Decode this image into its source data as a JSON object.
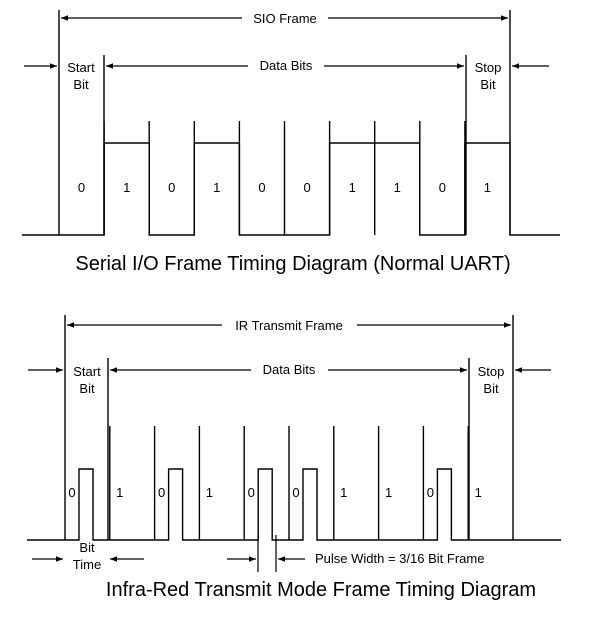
{
  "uart": {
    "frame_label": "SIO Frame",
    "start_label": [
      "Start",
      "Bit"
    ],
    "data_label": "Data Bits",
    "stop_label": [
      "Stop",
      "Bit"
    ],
    "bits": [
      "0",
      "1",
      "0",
      "1",
      "0",
      "0",
      "1",
      "1",
      "0",
      "1"
    ],
    "caption": "Serial I/O Frame Timing Diagram (Normal UART)"
  },
  "ir": {
    "frame_label": "IR Transmit Frame",
    "start_label": [
      "Start",
      "Bit"
    ],
    "data_label": "Data Bits",
    "stop_label": [
      "Stop",
      "Bit"
    ],
    "bits": [
      "0",
      "1",
      "0",
      "1",
      "0",
      "0",
      "1",
      "1",
      "0",
      "1"
    ],
    "bit_time_label": [
      "Bit",
      "Time"
    ],
    "pulse_width_label": "Pulse Width = 3/16 Bit Frame",
    "caption": "Infra-Red Transmit Mode Frame Timing Diagram"
  }
}
